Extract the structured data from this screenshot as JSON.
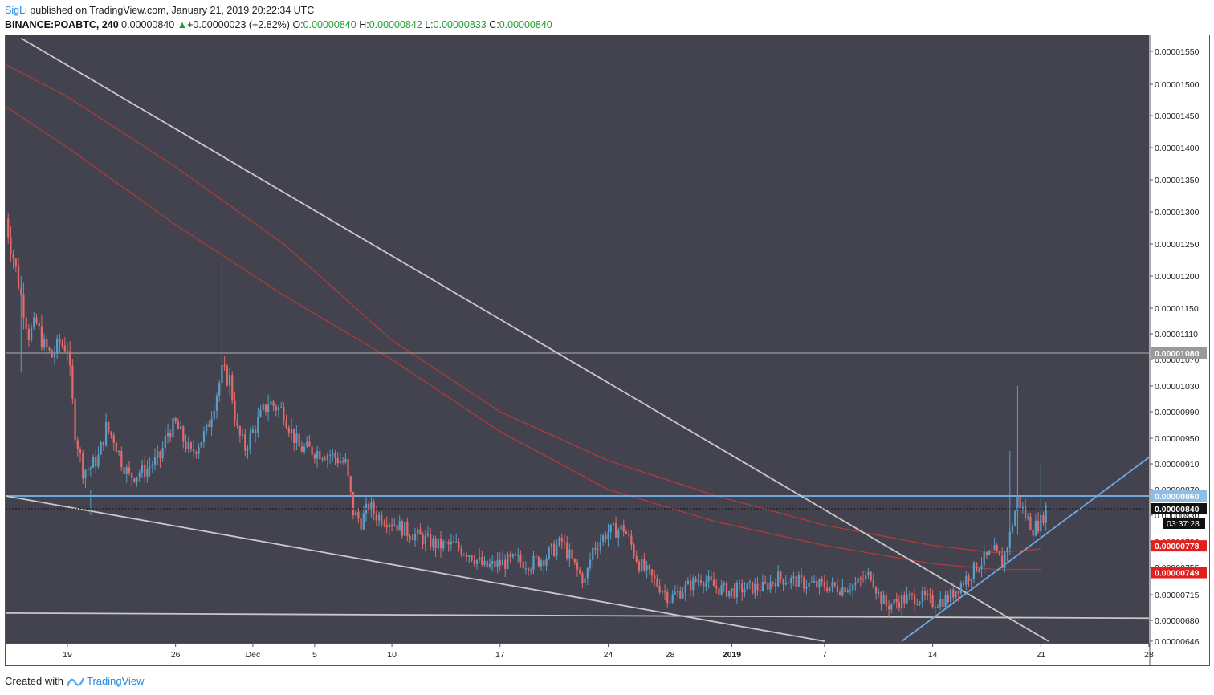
{
  "header": {
    "author": "SigLi",
    "published_text": "published on TradingView.com, January 21, 2019 20:22:34 UTC",
    "symbol": "BINANCE:POABTC, 240",
    "last": "0.00000840",
    "change_arrow": "▲",
    "change": "+0.00000023 (+2.82%)",
    "o_label": "O:",
    "o_value": "0.00000840",
    "h_label": "H:",
    "h_value": "0.00000842",
    "l_label": "L:",
    "l_value": "0.00000833",
    "c_label": "C:",
    "c_value": "0.00000840"
  },
  "footer": {
    "created_with": "Created with",
    "brand": "TradingView"
  },
  "chart_data": {
    "type": "candlestick",
    "title": "BINANCE:POABTC, 240",
    "ylim": [
      6.46e-06,
      1.555e-05
    ],
    "y_ticks": [
      "0.00001550",
      "0.00001500",
      "0.00001450",
      "0.00001400",
      "0.00001350",
      "0.00001300",
      "0.00001250",
      "0.00001200",
      "0.00001150",
      "0.00001110",
      "0.00001070",
      "0.00001030",
      "0.00000990",
      "0.00000950",
      "0.00000910",
      "0.00000870",
      "0.00000830",
      "0.00000790",
      "0.00000755",
      "0.00000715",
      "0.00000680",
      "0.00000646"
    ],
    "y_tick_values": [
      1550,
      1500,
      1450,
      1400,
      1350,
      1300,
      1250,
      1200,
      1150,
      1110,
      1070,
      1030,
      990,
      950,
      910,
      870,
      830,
      790,
      755,
      715,
      680,
      646
    ],
    "x_range": [
      "2018-11-15",
      "2019-01-28"
    ],
    "x_ticks": [
      {
        "label": "19",
        "date": "2018-11-19"
      },
      {
        "label": "26",
        "date": "2018-11-26"
      },
      {
        "label": "Dec",
        "date": "2018-12-01"
      },
      {
        "label": "5",
        "date": "2018-12-05"
      },
      {
        "label": "10",
        "date": "2018-12-10"
      },
      {
        "label": "17",
        "date": "2018-12-17"
      },
      {
        "label": "24",
        "date": "2018-12-24"
      },
      {
        "label": "28",
        "date": "2018-12-28"
      },
      {
        "label": "2019",
        "date": "2019-01-01",
        "bold": true
      },
      {
        "label": "7",
        "date": "2019-01-07"
      },
      {
        "label": "14",
        "date": "2019-01-14"
      },
      {
        "label": "21",
        "date": "2019-01-21"
      },
      {
        "label": "28",
        "date": "2019-01-28"
      }
    ],
    "price_path": [
      [
        "2018-11-15",
        1290
      ],
      [
        "2018-11-15T12",
        1230
      ],
      [
        "2018-11-16",
        1170
      ],
      [
        "2018-11-16T12",
        1110
      ],
      [
        "2018-11-17",
        1125
      ],
      [
        "2018-11-17T12",
        1090
      ],
      [
        "2018-11-18",
        1075
      ],
      [
        "2018-11-18T12",
        1095
      ],
      [
        "2018-11-19",
        1090
      ],
      [
        "2018-11-19T12",
        960
      ],
      [
        "2018-11-20",
        900
      ],
      [
        "2018-11-20T12",
        905
      ],
      [
        "2018-11-21",
        920
      ],
      [
        "2018-11-21T12",
        965
      ],
      [
        "2018-11-22",
        950
      ],
      [
        "2018-11-22T12",
        915
      ],
      [
        "2018-11-23",
        890
      ],
      [
        "2018-11-24",
        900
      ],
      [
        "2018-11-25",
        920
      ],
      [
        "2018-11-25T12",
        960
      ],
      [
        "2018-11-26",
        970
      ],
      [
        "2018-11-27",
        925
      ],
      [
        "2018-11-28",
        960
      ],
      [
        "2018-11-29",
        1050
      ],
      [
        "2018-11-29T12",
        1040
      ],
      [
        "2018-11-30",
        960
      ],
      [
        "2018-11-30T12",
        935
      ],
      [
        "2018-12-01",
        960
      ],
      [
        "2018-12-02",
        1005
      ],
      [
        "2018-12-03",
        990
      ],
      [
        "2018-12-03T12",
        960
      ],
      [
        "2018-12-04",
        935
      ],
      [
        "2018-12-05",
        930
      ],
      [
        "2018-12-06",
        925
      ],
      [
        "2018-12-07",
        910
      ],
      [
        "2018-12-07T12",
        835
      ],
      [
        "2018-12-08",
        820
      ],
      [
        "2018-12-08T12",
        845
      ],
      [
        "2018-12-09",
        830
      ],
      [
        "2018-12-10",
        820
      ],
      [
        "2018-12-11",
        805
      ],
      [
        "2018-12-12",
        795
      ],
      [
        "2018-12-13",
        785
      ],
      [
        "2018-12-14",
        785
      ],
      [
        "2018-12-15",
        775
      ],
      [
        "2018-12-16",
        755
      ],
      [
        "2018-12-17",
        760
      ],
      [
        "2018-12-18",
        765
      ],
      [
        "2018-12-19",
        760
      ],
      [
        "2018-12-20",
        770
      ],
      [
        "2018-12-21",
        790
      ],
      [
        "2018-12-22",
        750
      ],
      [
        "2018-12-22T12",
        735
      ],
      [
        "2018-12-23",
        780
      ],
      [
        "2018-12-24",
        805
      ],
      [
        "2018-12-25",
        810
      ],
      [
        "2018-12-26",
        760
      ],
      [
        "2018-12-27",
        735
      ],
      [
        "2018-12-28",
        710
      ],
      [
        "2018-12-29",
        725
      ],
      [
        "2018-12-30",
        740
      ],
      [
        "2018-12-31",
        725
      ],
      [
        "2019-01-01",
        720
      ],
      [
        "2019-01-02",
        725
      ],
      [
        "2019-01-03",
        725
      ],
      [
        "2019-01-04",
        740
      ],
      [
        "2019-01-05",
        735
      ],
      [
        "2019-01-06",
        730
      ],
      [
        "2019-01-07",
        728
      ],
      [
        "2019-01-08",
        725
      ],
      [
        "2019-01-09",
        730
      ],
      [
        "2019-01-10",
        745
      ],
      [
        "2019-01-10T12",
        715
      ],
      [
        "2019-01-11",
        700
      ],
      [
        "2019-01-12",
        708
      ],
      [
        "2019-01-13",
        712
      ],
      [
        "2019-01-14",
        705
      ],
      [
        "2019-01-15",
        710
      ],
      [
        "2019-01-16",
        735
      ],
      [
        "2019-01-17",
        760
      ],
      [
        "2019-01-18",
        775
      ],
      [
        "2019-01-18T12",
        760
      ],
      [
        "2019-01-19",
        800
      ],
      [
        "2019-01-19T12",
        855
      ],
      [
        "2019-01-20",
        830
      ],
      [
        "2019-01-20T12",
        810
      ],
      [
        "2019-01-21",
        820
      ],
      [
        "2019-01-21T08",
        840
      ]
    ],
    "wicks": [
      {
        "date": "2018-11-20T12",
        "high": 870,
        "low": 830
      },
      {
        "date": "2018-11-29",
        "high": 1220,
        "low": 1000
      },
      {
        "date": "2018-11-16",
        "high": 1200,
        "low": 1050
      },
      {
        "date": "2019-01-19T12",
        "high": 1030,
        "low": 800
      },
      {
        "date": "2019-01-21",
        "high": 910,
        "low": 820
      },
      {
        "date": "2019-01-19",
        "high": 930,
        "low": 790
      }
    ],
    "last_price": {
      "value": 840,
      "label": "0.00000840",
      "countdown": "03:37:28"
    },
    "horizontal_lines": [
      {
        "value": 1080,
        "label": "0.00001080",
        "color": "#b0b0b0"
      },
      {
        "value": 860,
        "label": "0.00000860",
        "color": "#6fa8dc"
      }
    ],
    "moving_averages": [
      {
        "color": "#b03a3a",
        "points": [
          [
            "2018-11-15",
            1530
          ],
          [
            "2018-11-19",
            1480
          ],
          [
            "2018-11-26",
            1370
          ],
          [
            "2018-12-03",
            1250
          ],
          [
            "2018-12-10",
            1100
          ],
          [
            "2018-12-17",
            990
          ],
          [
            "2018-12-24",
            915
          ],
          [
            "2018-12-31",
            860
          ],
          [
            "2019-01-07",
            815
          ],
          [
            "2019-01-14",
            785
          ],
          [
            "2019-01-18",
            775
          ],
          [
            "2019-01-21",
            780
          ]
        ],
        "label": "0.00000778"
      },
      {
        "color": "#b03a3a",
        "points": [
          [
            "2018-11-15",
            1465
          ],
          [
            "2018-11-19",
            1400
          ],
          [
            "2018-11-26",
            1280
          ],
          [
            "2018-12-03",
            1170
          ],
          [
            "2018-12-10",
            1070
          ],
          [
            "2018-12-17",
            960
          ],
          [
            "2018-12-24",
            870
          ],
          [
            "2018-12-31",
            820
          ],
          [
            "2019-01-07",
            785
          ],
          [
            "2019-01-14",
            760
          ],
          [
            "2019-01-18",
            752
          ],
          [
            "2019-01-21",
            752
          ]
        ],
        "label": "0.00000749"
      }
    ],
    "trend_lines": [
      {
        "from": [
          "2018-11-16",
          1570
        ],
        "to": [
          "2019-01-21T12",
          646
        ],
        "color": "#c8c8c8"
      },
      {
        "from": [
          "2018-11-15",
          860
        ],
        "to": [
          "2019-01-07",
          646
        ],
        "color": "#c8c8c8"
      },
      {
        "from": [
          "2018-11-15",
          690
        ],
        "to": [
          "2019-01-28",
          683
        ],
        "color": "#c8c8c8"
      },
      {
        "from": [
          "2019-01-12",
          646
        ],
        "to": [
          "2019-01-28",
          920
        ],
        "color": "#6fa8dc"
      }
    ],
    "colors": {
      "background": "#42434f",
      "up": "#5b9cc6",
      "down": "#e26a6a",
      "text": "#222222",
      "axis_bg": "#ffffff"
    }
  }
}
